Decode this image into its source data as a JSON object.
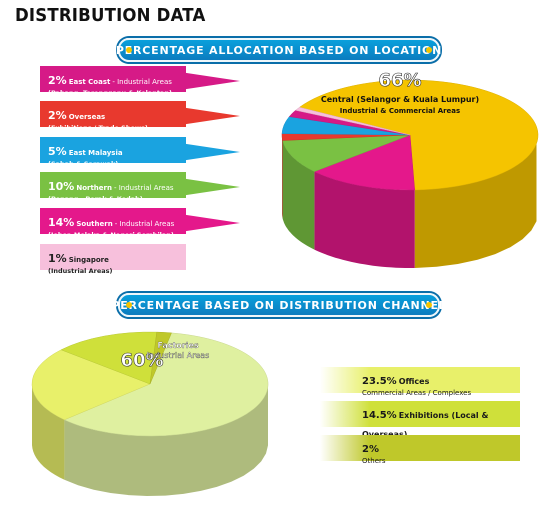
{
  "page_title": "DISTRIBUTION DATA",
  "chart_data": [
    {
      "type": "pie",
      "title": "PERCENTAGE ALLOCATION BASED ON LOCATION",
      "slices": [
        {
          "name": "Central (Selangor & Kuala Lumpur)",
          "value": 66,
          "pct_label": "66%",
          "sub": "Industrial & Commercial Areas",
          "color": "#f5c400"
        },
        {
          "name": "Southern",
          "value": 14,
          "pct_label": "14%",
          "desc": "- Industrial Areas",
          "sub": "(Johor, Melaka & Negeri Sembilan)",
          "color": "#e4188b"
        },
        {
          "name": "Northern",
          "value": 10,
          "pct_label": "10%",
          "desc": "- Industrial Areas",
          "sub": "(Penang , Perak & Kedah)",
          "color": "#7ac143"
        },
        {
          "name": "Overseas",
          "value": 2,
          "pct_label": "2%",
          "desc": "",
          "sub": "(Exhibitions / Trade Shows)",
          "color": "#e8392e"
        },
        {
          "name": "East Malaysia",
          "value": 5,
          "pct_label": "5%",
          "desc": "",
          "sub": "(Sabah & Sarawak)",
          "color": "#1aa3e0"
        },
        {
          "name": "East Coast",
          "value": 2,
          "pct_label": "2%",
          "desc": "- Industrial Areas",
          "sub": "(Pahang, Terengganu & Kelantan)",
          "color": "#d61a87"
        },
        {
          "name": "Singapore",
          "value": 1,
          "pct_label": "1%",
          "desc": "",
          "sub": "(Industrial Areas)",
          "color": "#f7c0dc"
        }
      ]
    },
    {
      "type": "pie",
      "title": "PERCENTAGE BASED ON DISTRIBUTION CHANNEL",
      "slices": [
        {
          "name": "Factories",
          "value": 60,
          "pct_label": "60%",
          "sub": "Industrial Areas",
          "color": "#dff0a0"
        },
        {
          "name": "Offices",
          "value": 23.5,
          "pct_label": "23.5%",
          "sub": "Commercial Areas / Complexes",
          "color": "#e8f06a"
        },
        {
          "name": "Exhibitions (Local & Overseas)",
          "value": 14.5,
          "pct_label": "14.5%",
          "sub": "",
          "color": "#cfe03a"
        },
        {
          "name": "",
          "value": 2,
          "pct_label": "2%",
          "sub": "Others",
          "color": "#bfc82a"
        }
      ]
    }
  ]
}
